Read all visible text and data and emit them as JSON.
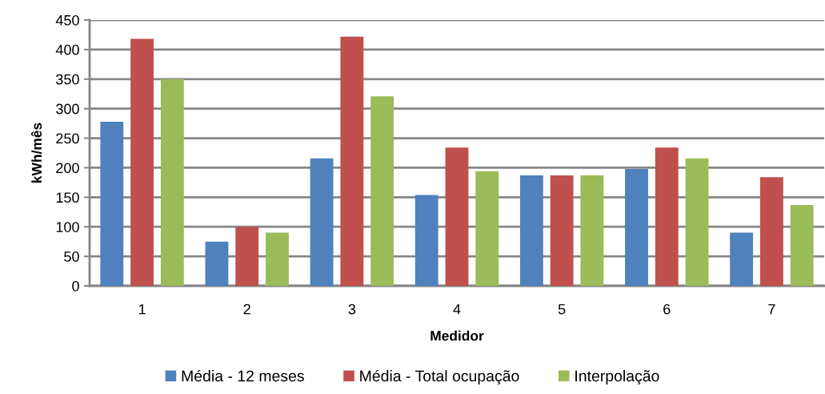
{
  "chart_data": {
    "type": "bar",
    "xlabel": "Medidor",
    "ylabel": "kWh/mês",
    "categories": [
      "1",
      "2",
      "3",
      "4",
      "5",
      "6",
      "7"
    ],
    "series": [
      {
        "name": "Média - 12 meses",
        "color": "#4f81bd",
        "values": [
          278,
          75,
          216,
          154,
          187,
          198,
          90
        ]
      },
      {
        "name": "Média - Total ocupação",
        "color": "#c0504d",
        "values": [
          418,
          100,
          422,
          234,
          187,
          234,
          184
        ]
      },
      {
        "name": "Interpolação",
        "color": "#9bbb59",
        "values": [
          350,
          90,
          321,
          194,
          187,
          216,
          137
        ]
      }
    ],
    "ylim": [
      0,
      450
    ],
    "yticks": [
      0,
      50,
      100,
      150,
      200,
      250,
      300,
      350,
      400,
      450
    ],
    "grid": "y",
    "legend": "bottom"
  }
}
